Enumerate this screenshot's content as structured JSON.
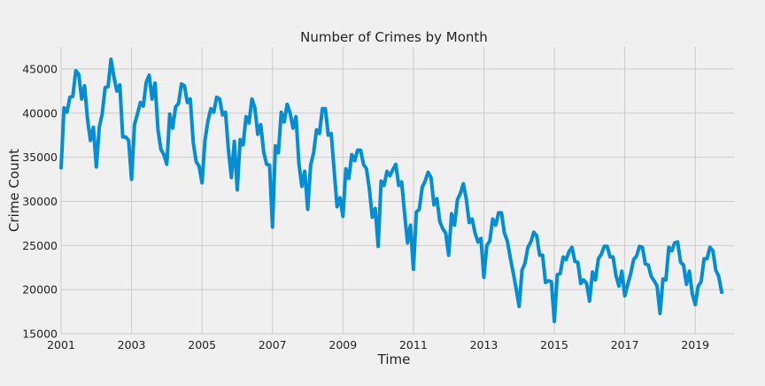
{
  "chart_data": {
    "type": "line",
    "title": "Number of Crimes by Month",
    "xlabel": "Time",
    "ylabel": "Crime Count",
    "grid": true,
    "xlim": [
      2001.0,
      2020.1
    ],
    "ylim": [
      15000,
      47500
    ],
    "x_ticks": [
      2001,
      2003,
      2005,
      2007,
      2009,
      2011,
      2013,
      2015,
      2017,
      2019
    ],
    "x_tick_labels": [
      "2001",
      "2003",
      "2005",
      "2007",
      "2009",
      "2011",
      "2013",
      "2015",
      "2017",
      "2019"
    ],
    "y_ticks": [
      15000,
      20000,
      25000,
      30000,
      35000,
      40000,
      45000
    ],
    "y_tick_labels": [
      "15000",
      "20000",
      "25000",
      "30000",
      "35000",
      "40000",
      "45000"
    ],
    "color": "#008fd5",
    "series": [
      {
        "x_start": "2001-01",
        "x_step": "1 month",
        "values": [
          33800,
          40600,
          40100,
          41800,
          41900,
          44800,
          44400,
          41600,
          43100,
          39300,
          36900,
          38400,
          33900,
          38400,
          39900,
          42900,
          43000,
          46100,
          44100,
          42500,
          43200,
          37300,
          37300,
          36900,
          32500,
          38700,
          39900,
          41200,
          40800,
          43500,
          44300,
          41600,
          43400,
          38100,
          35900,
          35300,
          34200,
          39900,
          38300,
          40700,
          41100,
          43300,
          43100,
          41200,
          41600,
          36700,
          34500,
          34000,
          32100,
          36900,
          39100,
          40500,
          40100,
          41800,
          41600,
          39800,
          40100,
          35800,
          32700,
          36800,
          31300,
          37000,
          36400,
          39600,
          38900,
          41600,
          40600,
          37600,
          38700,
          35600,
          34200,
          34100,
          27100,
          36300,
          35500,
          40100,
          39000,
          41000,
          40000,
          38300,
          39600,
          34300,
          31700,
          33400,
          29100,
          34100,
          35500,
          38100,
          37700,
          40500,
          40500,
          37500,
          37700,
          33500,
          29400,
          30400,
          28300,
          33700,
          32600,
          35300,
          34600,
          35800,
          35800,
          34200,
          33700,
          31400,
          28200,
          29200,
          24900,
          32300,
          31800,
          33400,
          32900,
          33600,
          34200,
          31800,
          32200,
          28600,
          25300,
          27300,
          22300,
          28800,
          29100,
          31600,
          32300,
          33300,
          32700,
          29600,
          30300,
          27700,
          26900,
          26400,
          23900,
          28600,
          27300,
          30200,
          30900,
          32000,
          30300,
          27600,
          28000,
          26400,
          25400,
          25800,
          21400,
          25000,
          25500,
          28000,
          27300,
          28700,
          28700,
          26400,
          25500,
          23600,
          21900,
          20100,
          18100,
          22200,
          23000,
          24800,
          25400,
          26500,
          26100,
          23900,
          23900,
          20800,
          21000,
          20900,
          16400,
          21700,
          21800,
          23700,
          23400,
          24300,
          24800,
          23200,
          23100,
          20700,
          21100,
          20700,
          18700,
          22000,
          21100,
          23500,
          24000,
          24900,
          24900,
          23700,
          23700,
          21600,
          20400,
          22100,
          19300,
          20600,
          21800,
          23400,
          23800,
          24900,
          24800,
          22900,
          22800,
          21500,
          21000,
          20400,
          17300,
          21200,
          21100,
          24800,
          24400,
          25300,
          25400,
          23100,
          22800,
          20600,
          22100,
          19500,
          18300,
          20400,
          20900,
          23500,
          23500,
          24800,
          24400,
          22200,
          21500,
          19700
        ]
      }
    ]
  }
}
